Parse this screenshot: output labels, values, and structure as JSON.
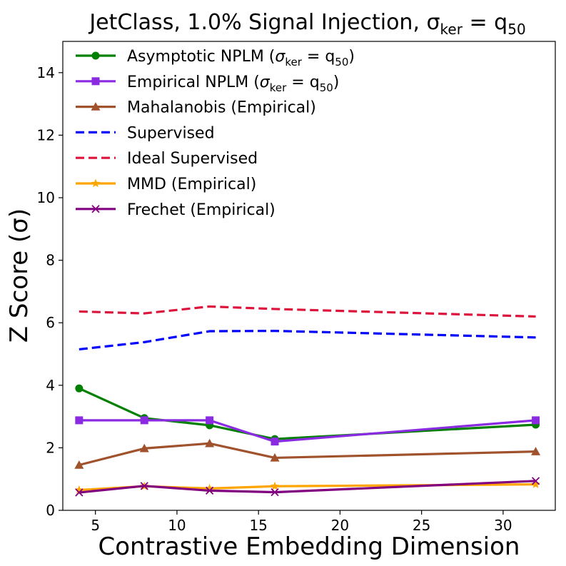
{
  "chart_data": {
    "type": "line",
    "title": "JetClass, 1.0% Signal Injection, σ",
    "title_sub": "ker",
    "title_tail": " = q",
    "title_tail_sub": "50",
    "xlabel": "Contrastive Embedding Dimension",
    "ylabel": "Z Score (σ)",
    "xlim": [
      3,
      33.2
    ],
    "ylim": [
      0,
      15
    ],
    "xticks": [
      5,
      10,
      15,
      20,
      25,
      30
    ],
    "yticks": [
      0,
      2,
      4,
      6,
      8,
      10,
      12,
      14
    ],
    "x": [
      4,
      8,
      12,
      16,
      32
    ],
    "legend_position": "upper-left",
    "series": [
      {
        "key": "asym",
        "name": "Asymptotic NPLM (",
        "name_math": "σ",
        "name_sub": "ker",
        "name_eq": " = q",
        "name_sub2": "50",
        "name_end": ")",
        "color": "#008000",
        "dash": "solid",
        "marker": "circle",
        "values": [
          3.9,
          2.95,
          2.72,
          2.28,
          2.74
        ]
      },
      {
        "key": "emp",
        "name": "Empirical NPLM (",
        "name_math": "σ",
        "name_sub": "ker",
        "name_eq": " = q",
        "name_sub2": "50",
        "name_end": ")",
        "color": "#8a2be2",
        "dash": "solid",
        "marker": "square",
        "values": [
          2.88,
          2.88,
          2.88,
          2.2,
          2.88
        ]
      },
      {
        "key": "maha",
        "name": "Mahalanobis (Empirical)",
        "color": "#a0522d",
        "dash": "solid",
        "marker": "triangle",
        "values": [
          1.45,
          1.98,
          2.14,
          1.68,
          1.88
        ]
      },
      {
        "key": "sup",
        "name": "Supervised",
        "color": "#0000ff",
        "dash": "dashed",
        "marker": "none",
        "values": [
          5.15,
          5.38,
          5.73,
          5.74,
          5.53
        ]
      },
      {
        "key": "ideal",
        "name": "Ideal Supervised",
        "color": "#dc143c",
        "dash": "dashed",
        "marker": "none",
        "values": [
          6.36,
          6.3,
          6.52,
          6.44,
          6.2
        ]
      },
      {
        "key": "mmd",
        "name": "MMD (Empirical)",
        "color": "#ffa500",
        "dash": "solid",
        "marker": "star",
        "values": [
          0.65,
          0.77,
          0.7,
          0.77,
          0.83
        ]
      },
      {
        "key": "frechet",
        "name": "Frechet (Empirical)",
        "color": "#800080",
        "dash": "solid",
        "marker": "x",
        "values": [
          0.57,
          0.78,
          0.63,
          0.58,
          0.94
        ]
      }
    ]
  }
}
